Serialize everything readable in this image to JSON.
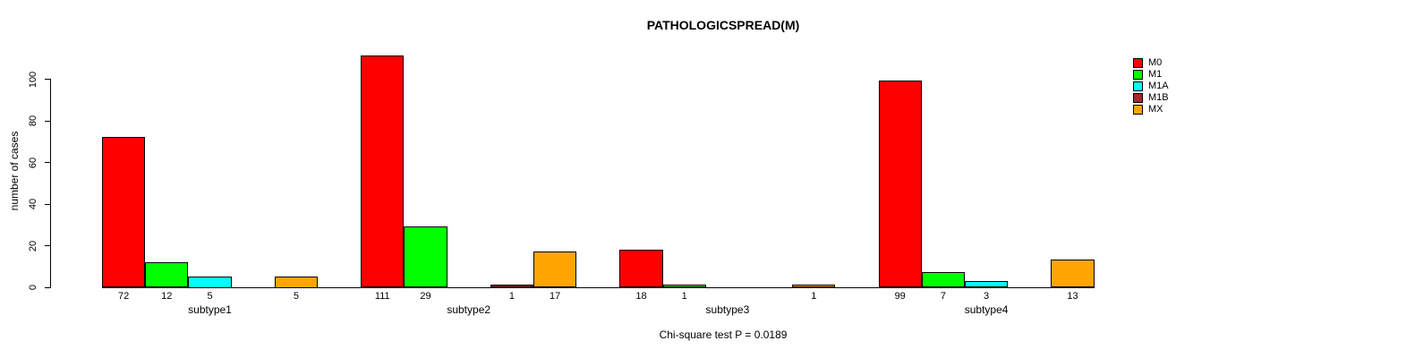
{
  "title": "PATHOLOGICSPREAD(M)",
  "subtitle": "Chi-square test P = 0.0189",
  "ylabel": "number of cases",
  "chart_data": {
    "type": "bar",
    "title": "PATHOLOGICSPREAD(M)",
    "xlabel": "",
    "ylabel": "number of cases",
    "annotation": "Chi-square test P = 0.0189",
    "categories": [
      "subtype1",
      "subtype2",
      "subtype3",
      "subtype4"
    ],
    "series": [
      {
        "name": "M0",
        "color": "#FF0000",
        "values": [
          72,
          111,
          18,
          99
        ]
      },
      {
        "name": "M1",
        "color": "#00FF00",
        "values": [
          12,
          29,
          1,
          7
        ]
      },
      {
        "name": "M1A",
        "color": "#00FFFF",
        "values": [
          5,
          0,
          0,
          3
        ]
      },
      {
        "name": "M1B",
        "color": "#A52A2A",
        "values": [
          0,
          1,
          0,
          0
        ]
      },
      {
        "name": "MX",
        "color": "#FFA500",
        "values": [
          5,
          17,
          1,
          13
        ]
      }
    ],
    "yticks": [
      0,
      20,
      40,
      60,
      80,
      100
    ],
    "ylim": [
      0,
      111
    ],
    "grid": false,
    "legend_position": "right",
    "bar_value_labels": "shown under each nonzero bar",
    "axis_color": "#000000",
    "background_color": "#FFFFFF"
  }
}
